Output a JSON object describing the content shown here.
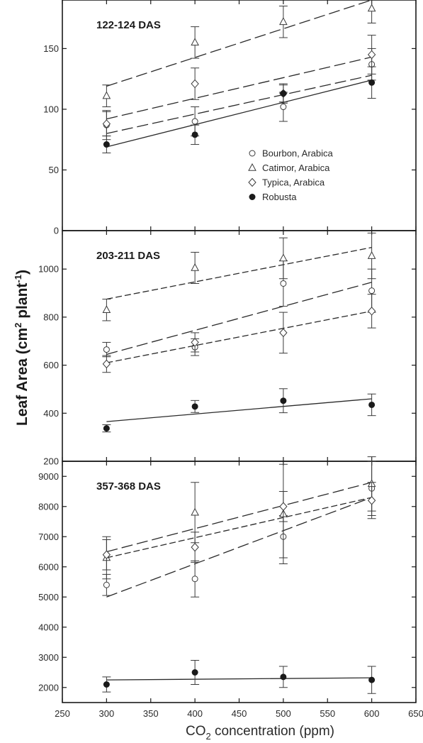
{
  "chart_data": {
    "type": "scatter",
    "xlabel_main": "CO",
    "xlabel_sub": "2",
    "xlabel_rest": " concentration (ppm)",
    "ylabel_main": "Leaf Area (cm",
    "ylabel_sup1": "2",
    "ylabel_mid": " plant",
    "ylabel_sup2": "-1",
    "ylabel_end": ")",
    "xlim": [
      250,
      650
    ],
    "xticks": [
      "250",
      "300",
      "350",
      "400",
      "450",
      "500",
      "550",
      "600",
      "650"
    ],
    "legend": {
      "placement": "inside panel 1, right",
      "entries": [
        {
          "label": "Bourbon, Arabica",
          "marker": "circle-open"
        },
        {
          "label": "Catimor, Arabica",
          "marker": "triangle-open"
        },
        {
          "label": "Typica, Arabica",
          "marker": "diamond-open"
        },
        {
          "label": "Robusta",
          "marker": "circle-filled"
        }
      ]
    },
    "panels": [
      {
        "title": "122-124 DAS",
        "ylim": [
          0,
          190
        ],
        "yticks": [
          "0",
          "50",
          "100",
          "150"
        ],
        "series": [
          {
            "name": "Bourbon, Arabica",
            "marker": "circle-open",
            "x": [
              300,
              400,
              500,
              600
            ],
            "y": [
              87,
              90,
              102,
              137
            ],
            "err": [
              12,
              12,
              12,
              13
            ],
            "fit": [
              80,
              128
            ],
            "line": "long-dash"
          },
          {
            "name": "Catimor, Arabica",
            "marker": "triangle-open",
            "x": [
              300,
              400,
              500,
              600
            ],
            "y": [
              111,
              155,
              172,
              183
            ],
            "err": [
              9,
              13,
              13,
              12
            ],
            "fit": [
              119,
              190
            ],
            "line": "long-dash"
          },
          {
            "name": "Typica, Arabica",
            "marker": "diamond-open",
            "x": [
              300,
              400,
              500,
              600
            ],
            "y": [
              88,
              121,
              113,
              145
            ],
            "err": [
              10,
              13,
              8,
              16
            ],
            "fit": [
              92,
              143
            ],
            "line": "long-dash"
          },
          {
            "name": "Robusta",
            "marker": "circle-filled",
            "x": [
              300,
              400,
              500,
              600
            ],
            "y": [
              71,
              79,
              113,
              122
            ],
            "err": [
              7,
              8,
              7,
              13
            ],
            "fit": [
              69,
              124
            ],
            "line": "solid"
          }
        ]
      },
      {
        "title": "203-211 DAS",
        "ylim": [
          200,
          1160
        ],
        "yticks": [
          "200",
          "400",
          "600",
          "800",
          "1000"
        ],
        "series": [
          {
            "name": "Bourbon, Arabica",
            "marker": "circle-open",
            "x": [
              300,
              400,
              500,
              600
            ],
            "y": [
              665,
              675,
              940,
              910
            ],
            "err": [
              30,
              35,
              95,
              90
            ],
            "fit": [
              645,
              945
            ],
            "line": "long-dash"
          },
          {
            "name": "Catimor, Arabica",
            "marker": "triangle-open",
            "x": [
              300,
              400,
              500,
              600
            ],
            "y": [
              830,
              1005,
              1045,
              1055
            ],
            "err": [
              45,
              65,
              85,
              95
            ],
            "fit": [
              875,
              1090
            ],
            "line": "short-dash"
          },
          {
            "name": "Typica, Arabica",
            "marker": "diamond-open",
            "x": [
              300,
              400,
              500,
              600
            ],
            "y": [
              605,
              695,
              735,
              825
            ],
            "err": [
              35,
              40,
              85,
              70
            ],
            "fit": [
              610,
              825
            ],
            "line": "short-dash"
          },
          {
            "name": "Robusta",
            "marker": "circle-filled",
            "x": [
              300,
              400,
              500,
              600
            ],
            "y": [
              337,
              428,
              452,
              435
            ],
            "err": [
              15,
              25,
              50,
              45
            ],
            "fit": [
              365,
              460
            ],
            "line": "solid"
          }
        ]
      },
      {
        "title": "357-368 DAS",
        "ylim": [
          1500,
          9500
        ],
        "yticks": [
          "2000",
          "3000",
          "4000",
          "5000",
          "6000",
          "7000",
          "8000",
          "9000"
        ],
        "series": [
          {
            "name": "Bourbon, Arabica",
            "marker": "circle-open",
            "x": [
              300,
              400,
              500,
              600
            ],
            "y": [
              5400,
              5600,
              7000,
              8600
            ],
            "err": [
              350,
              600,
              700,
              900
            ],
            "fit": [
              5000,
              8300
            ],
            "line": "long-dash"
          },
          {
            "name": "Catimor, Arabica",
            "marker": "triangle-open",
            "x": [
              300,
              400,
              500,
              600
            ],
            "y": [
              6300,
              7800,
              7750,
              8750
            ],
            "err": [
              700,
              1000,
              1650,
              900
            ],
            "fit": [
              6500,
              8800
            ],
            "line": "long-dash"
          },
          {
            "name": "Typica, Arabica",
            "marker": "diamond-open",
            "x": [
              300,
              400,
              500,
              600
            ],
            "y": [
              6400,
              6650,
              8000,
              8200
            ],
            "err": [
              500,
              500,
              500,
              600
            ],
            "fit": [
              6300,
              8300
            ],
            "line": "short-dash"
          },
          {
            "name": "Robusta",
            "marker": "circle-filled",
            "x": [
              300,
              400,
              500,
              600
            ],
            "y": [
              2100,
              2500,
              2350,
              2250
            ],
            "err": [
              250,
              400,
              350,
              450
            ],
            "fit": [
              2250,
              2320
            ],
            "line": "solid"
          }
        ]
      }
    ]
  }
}
